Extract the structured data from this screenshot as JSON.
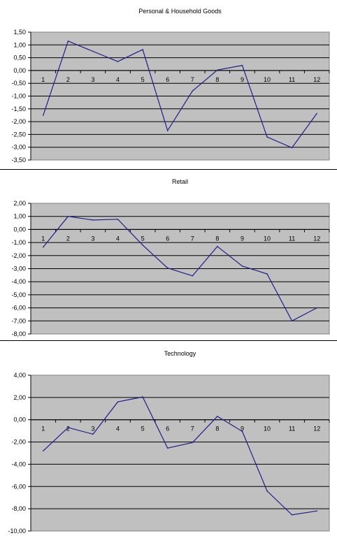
{
  "chart_data": [
    {
      "type": "line",
      "title": "Personal & Household Goods",
      "categories": [
        "1",
        "2",
        "3",
        "4",
        "5",
        "6",
        "7",
        "8",
        "9",
        "10",
        "11",
        "12"
      ],
      "values": [
        -1.75,
        1.15,
        0.75,
        0.35,
        0.82,
        -2.35,
        -0.8,
        0.02,
        0.2,
        -2.6,
        -3.02,
        -1.68
      ],
      "yticks": [
        "1,50",
        "1,00",
        "0,50",
        "0,00",
        "-0,50",
        "-1,00",
        "-1,50",
        "-2,00",
        "-2,50",
        "-3,00",
        "-3,50"
      ],
      "ylim": [
        -3.5,
        1.5
      ],
      "ystep": 0.5,
      "grid": true,
      "line_color": "#1f1f8a",
      "plot_bg": "#c0c0c0"
    },
    {
      "type": "line",
      "title": "Retail",
      "categories": [
        "1",
        "2",
        "3",
        "4",
        "5",
        "6",
        "7",
        "8",
        "9",
        "10",
        "11",
        "12"
      ],
      "values": [
        -1.35,
        1.0,
        0.72,
        0.78,
        -1.2,
        -2.95,
        -3.55,
        -1.3,
        -2.8,
        -3.4,
        -7.0,
        -6.0
      ],
      "yticks": [
        "2,00",
        "1,00",
        "0,00",
        "-1,00",
        "-2,00",
        "-3,00",
        "-4,00",
        "-5,00",
        "-6,00",
        "-7,00",
        "-8,00"
      ],
      "ylim": [
        -8,
        2
      ],
      "ystep": 1,
      "grid": true,
      "line_color": "#1f1f8a",
      "plot_bg": "#c0c0c0"
    },
    {
      "type": "line",
      "title": "Technology",
      "categories": [
        "1",
        "2",
        "3",
        "4",
        "5",
        "6",
        "7",
        "8",
        "9",
        "10",
        "11",
        "12"
      ],
      "values": [
        -2.8,
        -0.7,
        -1.3,
        1.6,
        2.05,
        -2.55,
        -2.05,
        0.3,
        -1.05,
        -6.4,
        -8.55,
        -8.2
      ],
      "yticks": [
        "4,00",
        "2,00",
        "0,00",
        "-2,00",
        "-4,00",
        "-6,00",
        "-8,00",
        "-10,00"
      ],
      "ylim": [
        -10,
        4
      ],
      "ystep": 2,
      "grid": true,
      "line_color": "#1f1f8a",
      "plot_bg": "#c0c0c0"
    }
  ]
}
